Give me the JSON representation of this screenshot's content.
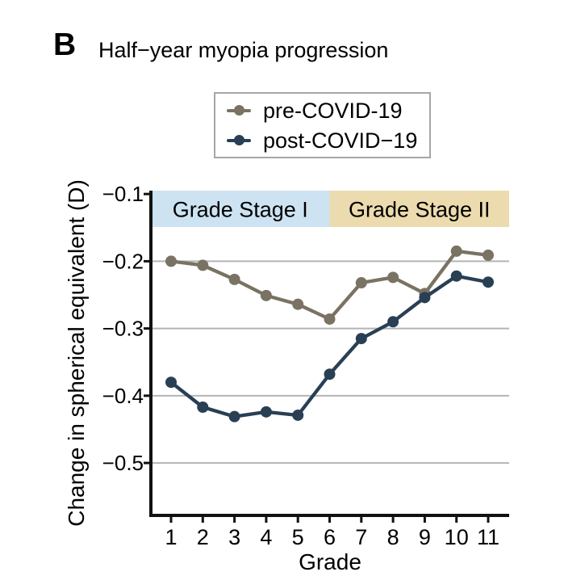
{
  "panel_label": "B",
  "title": "Half−year myopia progression",
  "legend": {
    "items": [
      {
        "label": "pre-COVID-19",
        "series_key": "pre"
      },
      {
        "label": "post-COVID−19",
        "series_key": "post"
      }
    ]
  },
  "chart_data": {
    "type": "line",
    "title": "Half−year myopia progression",
    "xlabel": "Grade",
    "ylabel": "Change in spherical equivalent (D)",
    "x": [
      1,
      2,
      3,
      4,
      5,
      6,
      7,
      8,
      9,
      10,
      11
    ],
    "x_tick_labels": [
      "1",
      "2",
      "3",
      "4",
      "5",
      "6",
      "7",
      "8",
      "9",
      "10",
      "11"
    ],
    "y_ticks": [
      -0.1,
      -0.2,
      -0.3,
      -0.4,
      -0.5
    ],
    "y_tick_labels": [
      "−0.1",
      "−0.2",
      "−0.3",
      "−0.4",
      "−0.5"
    ],
    "y_range": [
      -0.578,
      -0.095
    ],
    "grid": true,
    "legend_position": "top-center",
    "series": [
      {
        "name": "pre-COVID-19",
        "key": "pre",
        "color": "#7a7262",
        "values": [
          -0.2,
          -0.206,
          -0.227,
          -0.251,
          -0.264,
          -0.286,
          -0.232,
          -0.224,
          -0.248,
          -0.185,
          -0.191
        ]
      },
      {
        "name": "post-COVID-19",
        "key": "post",
        "color": "#293f54",
        "values": [
          -0.38,
          -0.417,
          -0.431,
          -0.424,
          -0.429,
          -0.368,
          -0.315,
          -0.29,
          -0.254,
          -0.222,
          -0.231
        ]
      }
    ],
    "stage_bands": [
      {
        "label": "Grade Stage I",
        "x_from": "plot-left",
        "x_to": 6,
        "fill": "#cde3f2"
      },
      {
        "label": "Grade Stage II",
        "x_from": 6,
        "x_to": "plot-right",
        "fill": "#ecdbae"
      }
    ],
    "band_label_color": "#000000",
    "gridline_color": "#b4b4b4",
    "axis_color": "#111111"
  }
}
